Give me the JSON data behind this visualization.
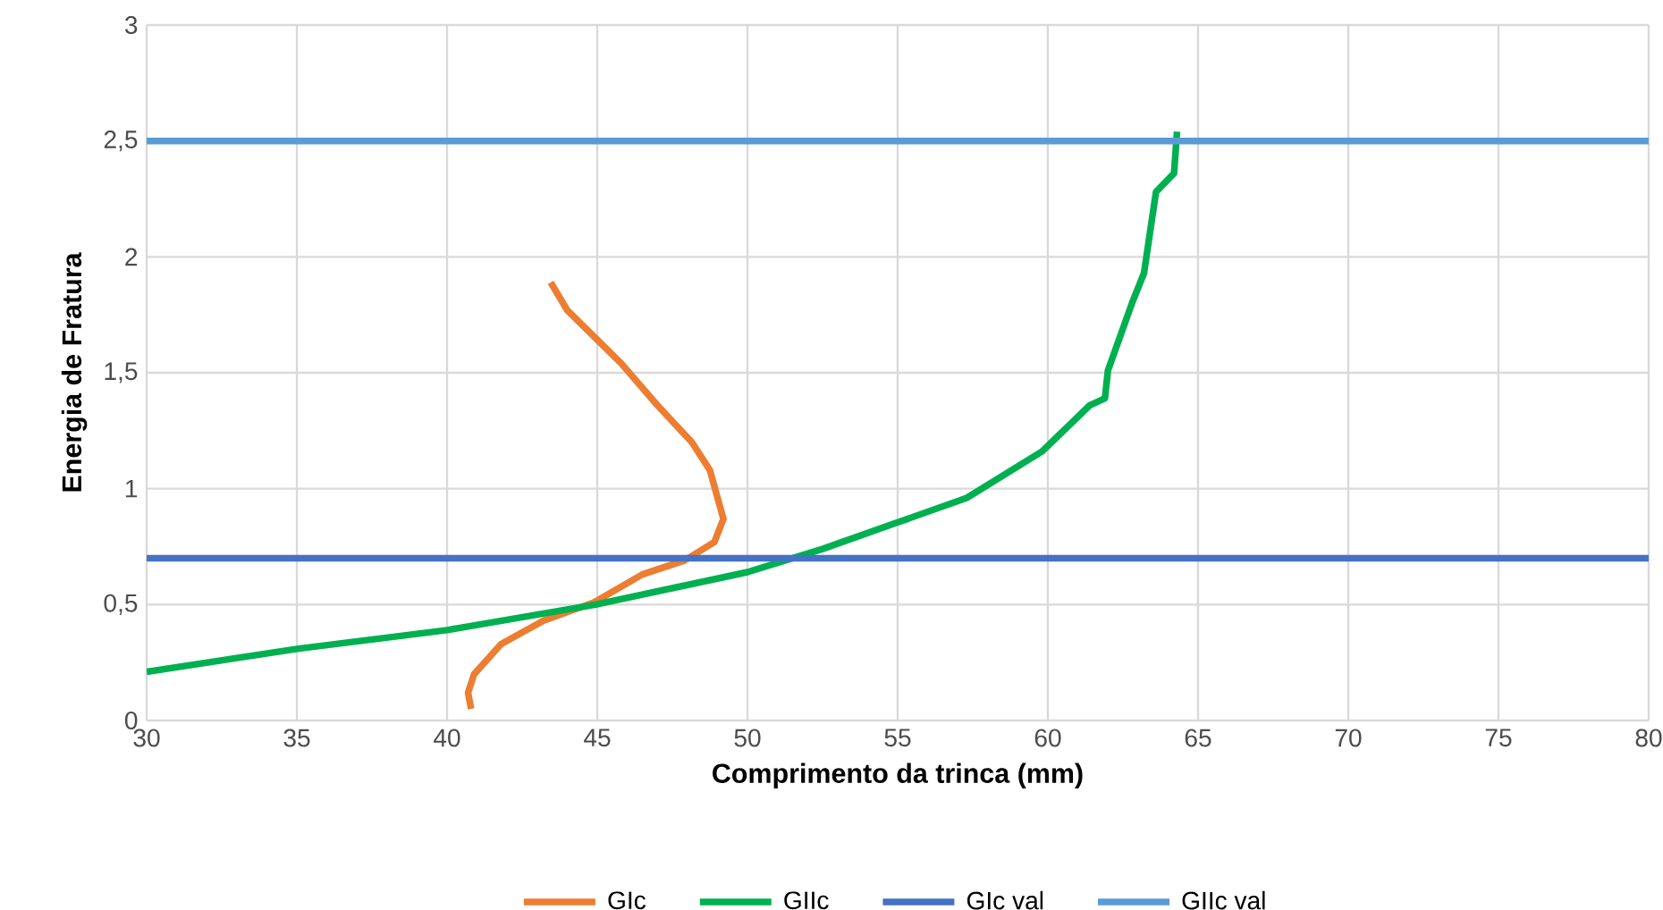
{
  "chart_data": {
    "type": "line",
    "xlabel": "Comprimento da trinca (mm)",
    "ylabel": "Energia de Fratura",
    "xlim": [
      30,
      80
    ],
    "xticks": [
      30,
      35,
      40,
      45,
      50,
      55,
      60,
      65,
      70,
      75,
      80
    ],
    "ylim": [
      0,
      3
    ],
    "yticks": [
      0,
      {
        "value": 0.5,
        "label": "0,5"
      },
      1,
      {
        "value": 1.5,
        "label": "1,5"
      },
      2,
      {
        "value": 2.5,
        "label": "2,5"
      },
      3
    ],
    "grid": true,
    "legend": "bottom",
    "marker": "none",
    "line_style": "solid",
    "series": [
      {
        "name": "GIc",
        "color": "#ed7d31",
        "x": [
          43.45,
          44.0,
          45.8,
          47.0,
          48.15,
          48.75,
          49.2,
          48.9,
          47.9,
          46.5,
          44.9,
          43.2,
          41.8,
          40.9,
          40.7,
          40.8
        ],
        "values": [
          1.89,
          1.77,
          1.54,
          1.36,
          1.2,
          1.08,
          0.87,
          0.77,
          0.69,
          0.63,
          0.51,
          0.43,
          0.33,
          0.2,
          0.12,
          0.05
        ]
      },
      {
        "name": "GIIc",
        "color": "#00b050",
        "x": [
          30,
          35.06,
          40.0,
          44.94,
          50.0,
          52.5,
          54.9,
          57.3,
          59.8,
          61.4,
          61.9,
          62.0,
          62.8,
          63.2,
          63.6,
          64.2,
          64.3
        ],
        "values": [
          0.21,
          0.31,
          0.39,
          0.5,
          0.64,
          0.74,
          0.85,
          0.96,
          1.16,
          1.36,
          1.39,
          1.51,
          1.8,
          1.93,
          2.28,
          2.36,
          2.54
        ]
      },
      {
        "name": "GIc val",
        "color": "#4472c4",
        "x": [
          30,
          80
        ],
        "values": [
          0.7,
          0.7
        ]
      },
      {
        "name": "GIIc val",
        "color": "#5b9bd5",
        "x": [
          30,
          80
        ],
        "values": [
          2.5,
          2.5
        ]
      }
    ]
  }
}
